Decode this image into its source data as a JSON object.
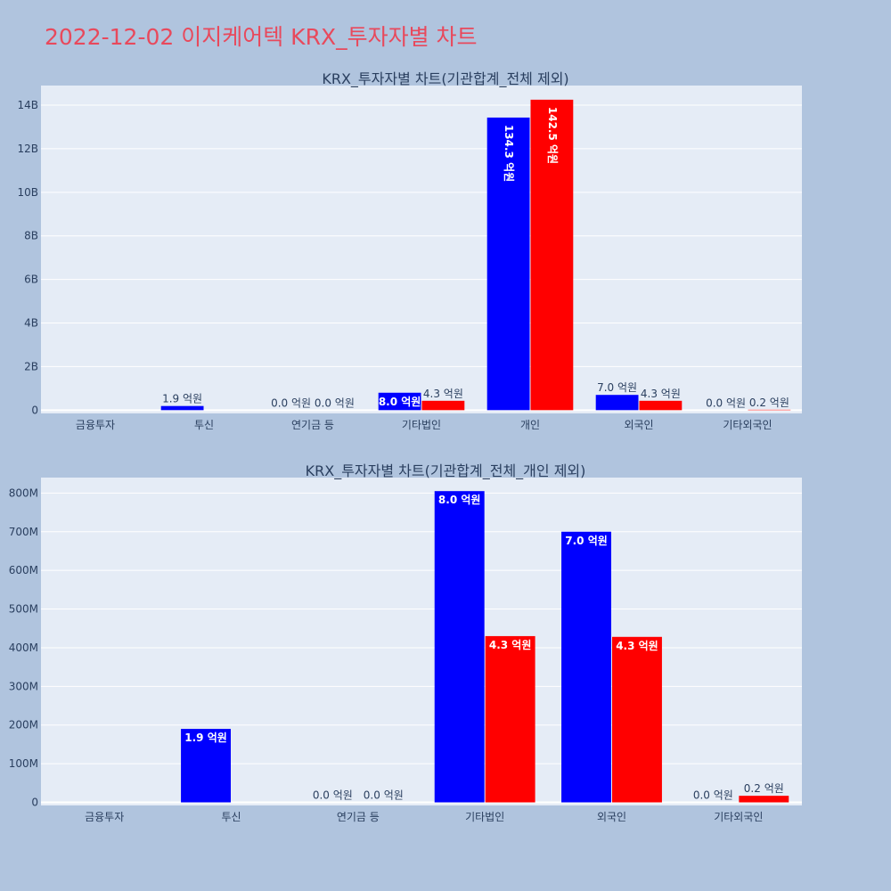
{
  "page": {
    "title": "2022-12-02 이지케어텍 KRX_투자자별 차트"
  },
  "chart_data": [
    {
      "type": "bar",
      "title": "KRX_투자자별 차트(기관합계_전체 제외)",
      "categories": [
        "금융투자",
        "투신",
        "연기금 등",
        "기타법인",
        "개인",
        "외국인",
        "기타외국인"
      ],
      "series": [
        {
          "color": "#0000ff",
          "values": [
            0,
            190000000,
            0,
            800000000,
            13430000000,
            700000000,
            0
          ],
          "labels": [
            "",
            "1.9 억원",
            "0.0 억원",
            "8.0 억원",
            "134.3 억원",
            "7.0 억원",
            "0.0 억원"
          ]
        },
        {
          "color": "#ff0000",
          "values": [
            0,
            0,
            0,
            430000000,
            14250000000,
            430000000,
            20000000
          ],
          "labels": [
            "",
            "",
            "0.0 억원",
            "4.3 억원",
            "142.5 억원",
            "4.3 억원",
            "0.2 억원"
          ]
        }
      ],
      "ylim": [
        -150000000,
        14900000000
      ],
      "yticks": [
        0,
        2000000000,
        4000000000,
        6000000000,
        8000000000,
        10000000000,
        12000000000,
        14000000000
      ],
      "ytick_labels": [
        "0",
        "2B",
        "4B",
        "6B",
        "8B",
        "10B",
        "12B",
        "14B"
      ],
      "grid": true
    },
    {
      "type": "bar",
      "title": "KRX_투자자별 차트(기관합계_전체_개인 제외)",
      "categories": [
        "금융투자",
        "투신",
        "연기금 등",
        "기타법인",
        "외국인",
        "기타외국인"
      ],
      "series": [
        {
          "color": "#0000ff",
          "values": [
            0,
            190000000,
            0,
            805000000,
            700000000,
            0
          ],
          "labels": [
            "",
            "1.9 억원",
            "0.0 억원",
            "8.0 억원",
            "7.0 억원",
            "0.0 억원"
          ]
        },
        {
          "color": "#ff0000",
          "values": [
            0,
            0,
            0,
            430000000,
            428000000,
            17000000
          ],
          "labels": [
            "",
            "",
            "0.0 억원",
            "4.3 억원",
            "4.3 억원",
            "0.2 억원"
          ]
        }
      ],
      "ylim": [
        -8000000,
        840000000
      ],
      "yticks": [
        0,
        100000000,
        200000000,
        300000000,
        400000000,
        500000000,
        600000000,
        700000000,
        800000000
      ],
      "ytick_labels": [
        "0",
        "100M",
        "200M",
        "300M",
        "400M",
        "500M",
        "600M",
        "700M",
        "800M"
      ],
      "grid": true
    }
  ]
}
